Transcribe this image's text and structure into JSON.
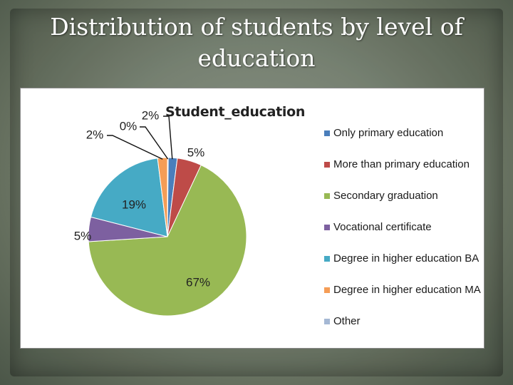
{
  "slide": {
    "title_line1": "Distribution of students by level of",
    "title_line2": "education"
  },
  "chart_data": {
    "type": "pie",
    "title": "Student_education",
    "categories": [
      "Only primary education",
      "More than primary education",
      "Secondary graduation",
      "Vocational certificate",
      "Degree in higher education BA",
      "Degree in higher education MA",
      "Other"
    ],
    "values": [
      2,
      5,
      67,
      5,
      19,
      2,
      0
    ],
    "data_labels": [
      "2%",
      "5%",
      "67%",
      "5%",
      "19%",
      "2%",
      "0%"
    ],
    "colors": [
      "#4a7ebb",
      "#be4b48",
      "#98b954",
      "#7d60a0",
      "#46aac5",
      "#f59d56",
      "#a5b8d4"
    ],
    "legend": "right"
  },
  "legend_labels": [
    " Only primary education",
    "More than primary education",
    "   Secondary graduation",
    "Vocational certificate",
    "Degree in higher education BA",
    "Degree in higher education MA",
    "Other"
  ]
}
